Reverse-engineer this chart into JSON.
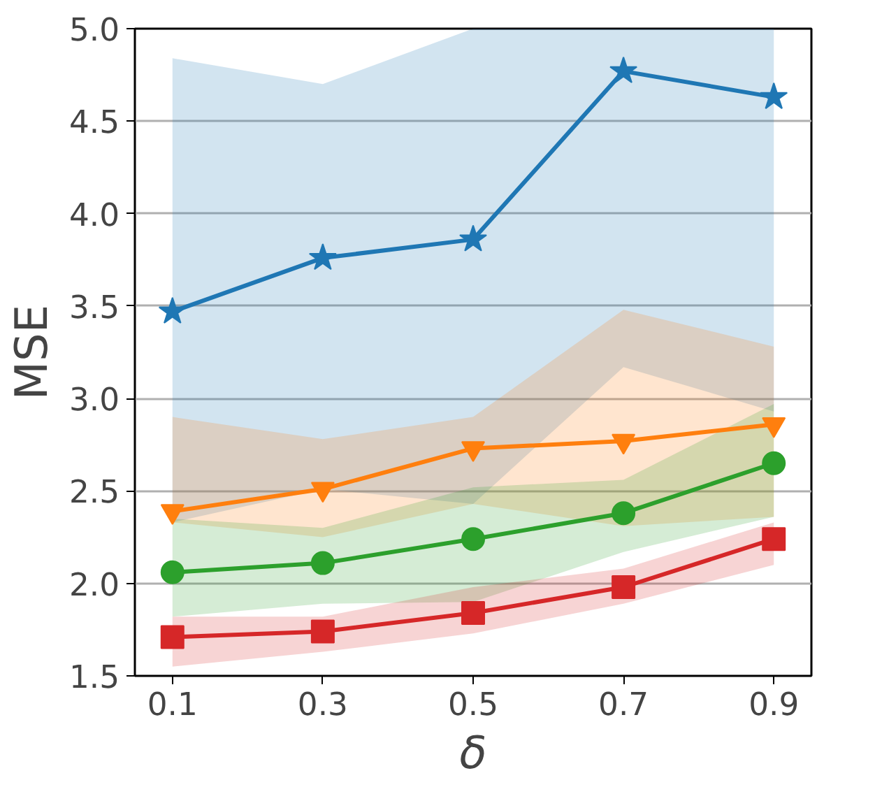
{
  "chart_data": {
    "type": "line",
    "xlabel": "δ",
    "ylabel": "MSE",
    "x": [
      0.1,
      0.3,
      0.5,
      0.7,
      0.9
    ],
    "xlim": [
      0.05,
      0.95
    ],
    "ylim": [
      1.5,
      5.0
    ],
    "xticks": [
      0.1,
      0.3,
      0.5,
      0.7,
      0.9
    ],
    "yticks": [
      {
        "value": 1.5,
        "label": "1.5"
      },
      {
        "value": 2.0,
        "label": "2.0"
      },
      {
        "value": 2.5,
        "label": "2.5"
      },
      {
        "value": 3.0,
        "label": "3.0"
      },
      {
        "value": 3.5,
        "label": "3.5"
      },
      {
        "value": 4.0,
        "label": "4.0"
      },
      {
        "value": 4.5,
        "label": "4.5"
      },
      {
        "value": 5.0,
        "label": "5.0"
      }
    ],
    "grid": "y",
    "line_style": "solid",
    "series": [
      {
        "color": "#1f77b4",
        "marker": "star",
        "values": [
          3.47,
          3.76,
          3.86,
          4.77,
          4.63
        ],
        "lower": [
          2.33,
          2.51,
          2.43,
          3.17,
          2.93
        ],
        "upper": [
          4.84,
          4.7,
          5.0,
          5.0,
          5.0
        ]
      },
      {
        "color": "#ff7f0e",
        "marker": "triangle",
        "values": [
          2.39,
          2.51,
          2.73,
          2.77,
          2.86
        ],
        "lower": [
          2.33,
          2.25,
          2.43,
          2.31,
          2.36
        ],
        "upper": [
          2.9,
          2.78,
          2.9,
          3.48,
          3.28
        ]
      },
      {
        "color": "#2ca02c",
        "marker": "circle",
        "values": [
          2.06,
          2.11,
          2.24,
          2.38,
          2.65
        ],
        "lower": [
          1.82,
          1.89,
          1.9,
          2.17,
          2.36
        ],
        "upper": [
          2.35,
          2.3,
          2.52,
          2.56,
          2.97
        ]
      },
      {
        "color": "#d62728",
        "marker": "square",
        "values": [
          1.71,
          1.74,
          1.84,
          1.98,
          2.24
        ],
        "lower": [
          1.55,
          1.63,
          1.73,
          1.89,
          2.1
        ],
        "upper": [
          1.82,
          1.82,
          1.98,
          2.08,
          2.33
        ]
      }
    ]
  }
}
